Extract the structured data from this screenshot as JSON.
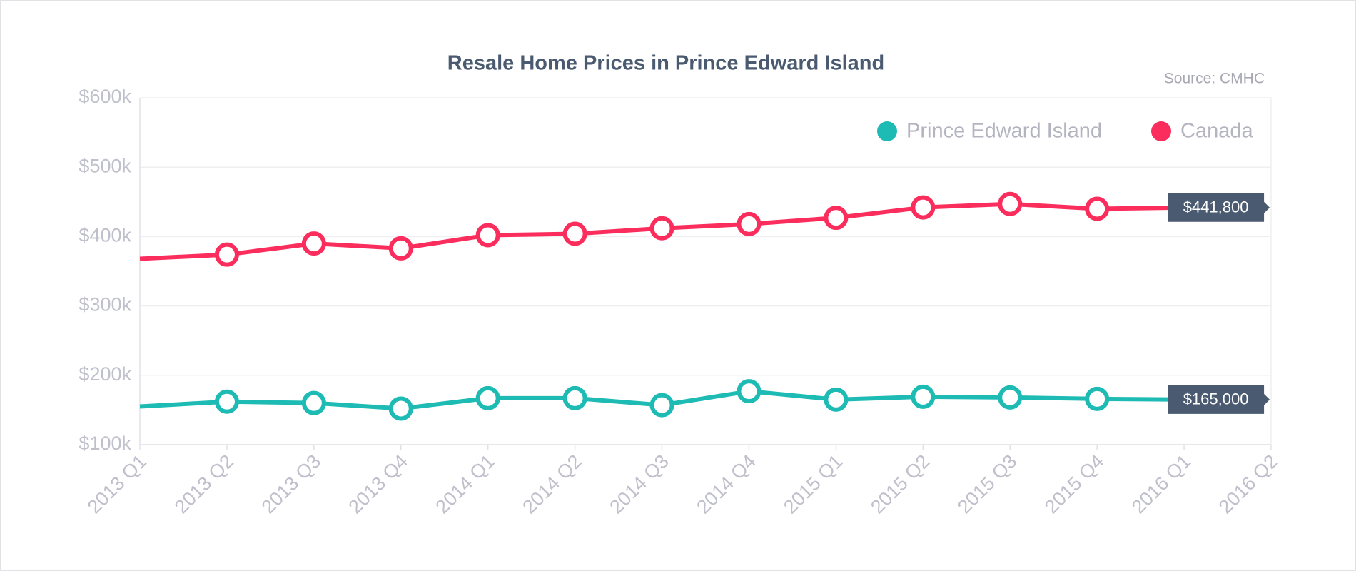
{
  "chart_data": {
    "type": "line",
    "title": "Resale Home Prices in Prince Edward Island",
    "source": "Source: CMHC",
    "categories": [
      "2013 Q1",
      "2013 Q2",
      "2013 Q3",
      "2013 Q4",
      "2014 Q1",
      "2014 Q2",
      "2014 Q3",
      "2014 Q4",
      "2015 Q1",
      "2015 Q2",
      "2015 Q3",
      "2015 Q4",
      "2016 Q1",
      "2016 Q2"
    ],
    "series": [
      {
        "name": "Prince Edward Island",
        "color": "#1dbbb4",
        "values": [
          155000,
          162000,
          160000,
          152000,
          167000,
          167000,
          157000,
          177000,
          165000,
          169000,
          168000,
          166000,
          165000,
          null
        ],
        "value_labels": [
          null,
          null,
          null,
          null,
          null,
          null,
          null,
          null,
          null,
          null,
          null,
          null,
          "$165,000",
          null
        ]
      },
      {
        "name": "Canada",
        "color": "#fb2d5d",
        "values": [
          368000,
          374000,
          390000,
          383000,
          402000,
          404000,
          412000,
          418000,
          427000,
          442000,
          447000,
          440000,
          441800,
          null
        ],
        "value_labels": [
          null,
          null,
          null,
          null,
          null,
          null,
          null,
          null,
          null,
          null,
          null,
          null,
          "$441,800",
          null
        ]
      }
    ],
    "ylim": [
      100000,
      600000
    ],
    "yticks": [
      {
        "value": 100000,
        "label": "$100k"
      },
      {
        "value": 200000,
        "label": "$200k"
      },
      {
        "value": 300000,
        "label": "$300k"
      },
      {
        "value": 400000,
        "label": "$400k"
      },
      {
        "value": 500000,
        "label": "$500k"
      },
      {
        "value": 600000,
        "label": "$600k"
      }
    ],
    "grid": true,
    "legend": "top-right"
  }
}
